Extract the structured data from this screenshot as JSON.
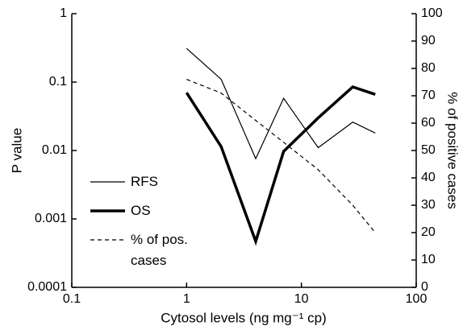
{
  "chart_data": {
    "type": "line",
    "xlabel": "Cytosol levels (ng mg⁻¹ cp)",
    "ylabel": "P value",
    "y2label": "% of positive cases",
    "x": [
      1,
      2,
      4,
      7,
      14,
      28,
      44
    ],
    "xlog": true,
    "ylog": true,
    "xlim": [
      0.1,
      100
    ],
    "xticks": [
      0.1,
      1,
      10,
      100
    ],
    "ylim": [
      0.0001,
      1
    ],
    "yticks": [
      0.0001,
      0.001,
      0.01,
      0.1,
      1
    ],
    "y2lim": [
      0,
      100
    ],
    "y2ticks": [
      0,
      10,
      20,
      30,
      40,
      50,
      60,
      70,
      80,
      90,
      100
    ],
    "series": [
      {
        "name": "RFS",
        "color": "#000000",
        "width": 1.2,
        "dashed": false,
        "values": [
          0.31,
          0.11,
          0.0076,
          0.058,
          0.011,
          0.026,
          0.018
        ]
      },
      {
        "name": "OS",
        "color": "#000000",
        "width": 3.5,
        "dashed": false,
        "values": [
          0.07,
          0.0114,
          0.00047,
          0.0097,
          0.03,
          0.085,
          0.066
        ]
      },
      {
        "name": "% of pos. cases",
        "color": "#000000",
        "width": 1.2,
        "dashed": true,
        "axis": "y2",
        "values": [
          76,
          71,
          61,
          53,
          43,
          30,
          20
        ]
      }
    ]
  }
}
